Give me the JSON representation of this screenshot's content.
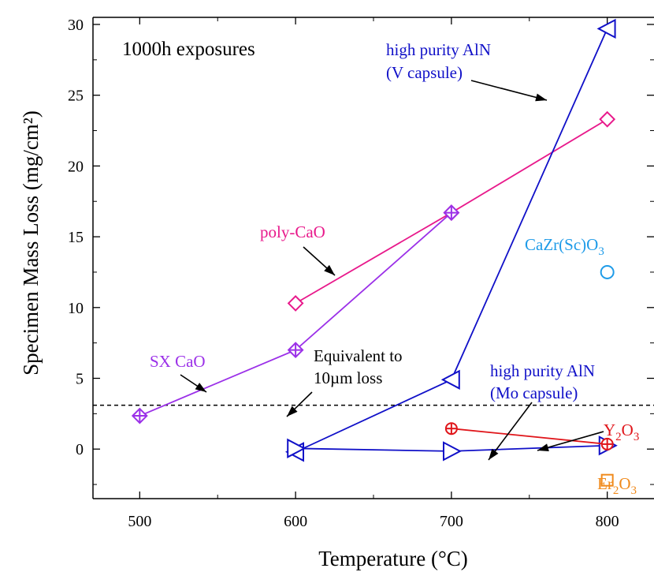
{
  "chart_data": {
    "type": "line",
    "title": "",
    "xlabel": "Temperature (°C)",
    "ylabel": "Specimen Mass Loss (mg/cm²)",
    "xlim": [
      470,
      830
    ],
    "ylim": [
      -3.5,
      30.5
    ],
    "xticks": [
      500,
      600,
      700,
      800
    ],
    "yticks": [
      0,
      5,
      10,
      15,
      20,
      25,
      30
    ],
    "grid": false,
    "reference_line": {
      "y": 3.1,
      "style": "dashed",
      "color": "#000000"
    },
    "series": [
      {
        "key": "poly",
        "marker": "diamond",
        "color": "#e8198b",
        "points": [
          [
            600,
            10.3
          ],
          [
            700,
            16.7
          ],
          [
            800,
            23.3
          ]
        ]
      },
      {
        "key": "sx",
        "marker": "diamond-cross",
        "color": "#9b30e8",
        "points": [
          [
            500,
            2.35
          ],
          [
            600,
            7.0
          ],
          [
            700,
            16.7
          ]
        ]
      },
      {
        "key": "aln_v",
        "marker": "triangle-left",
        "color": "#1010c8",
        "points": [
          [
            600,
            -0.2
          ],
          [
            700,
            4.9
          ],
          [
            800,
            29.7
          ]
        ]
      },
      {
        "key": "aln_mo",
        "marker": "triangle-right",
        "color": "#1010c8",
        "points": [
          [
            600,
            0.05
          ],
          [
            700,
            -0.15
          ],
          [
            800,
            0.25
          ]
        ]
      },
      {
        "key": "y2o3",
        "marker": "circle-plus",
        "color": "#e0161b",
        "points": [
          [
            700,
            1.45
          ],
          [
            800,
            0.35
          ]
        ]
      },
      {
        "key": "cazr",
        "marker": "circle",
        "color": "#1e9be8",
        "points": [
          [
            800,
            12.5
          ]
        ]
      },
      {
        "key": "er2o3",
        "marker": "square",
        "color": "#f08a1c",
        "points": [
          [
            800,
            -2.2
          ]
        ]
      }
    ],
    "annotations": {
      "exposure": "1000h exposures",
      "aln_v_line1": "high purity AlN",
      "aln_v_line2": "(V capsule)",
      "poly": "poly-CaO",
      "sx": "SX CaO",
      "equiv_line1": "Equivalent to",
      "equiv_line2": "10µm loss",
      "aln_mo_line1": "high purity AlN",
      "aln_mo_line2": "(Mo capsule)",
      "cazr_main": "CaZr(Sc)O",
      "cazr_sub": "3",
      "y2o3_main": "Y",
      "y2o3_sub": "2",
      "y2o3_tail": "O",
      "y2o3_sub2": "3",
      "er2o3_main": "Er",
      "er2o3_sub": "2",
      "er2o3_tail": "O",
      "er2o3_sub2": "3"
    }
  }
}
